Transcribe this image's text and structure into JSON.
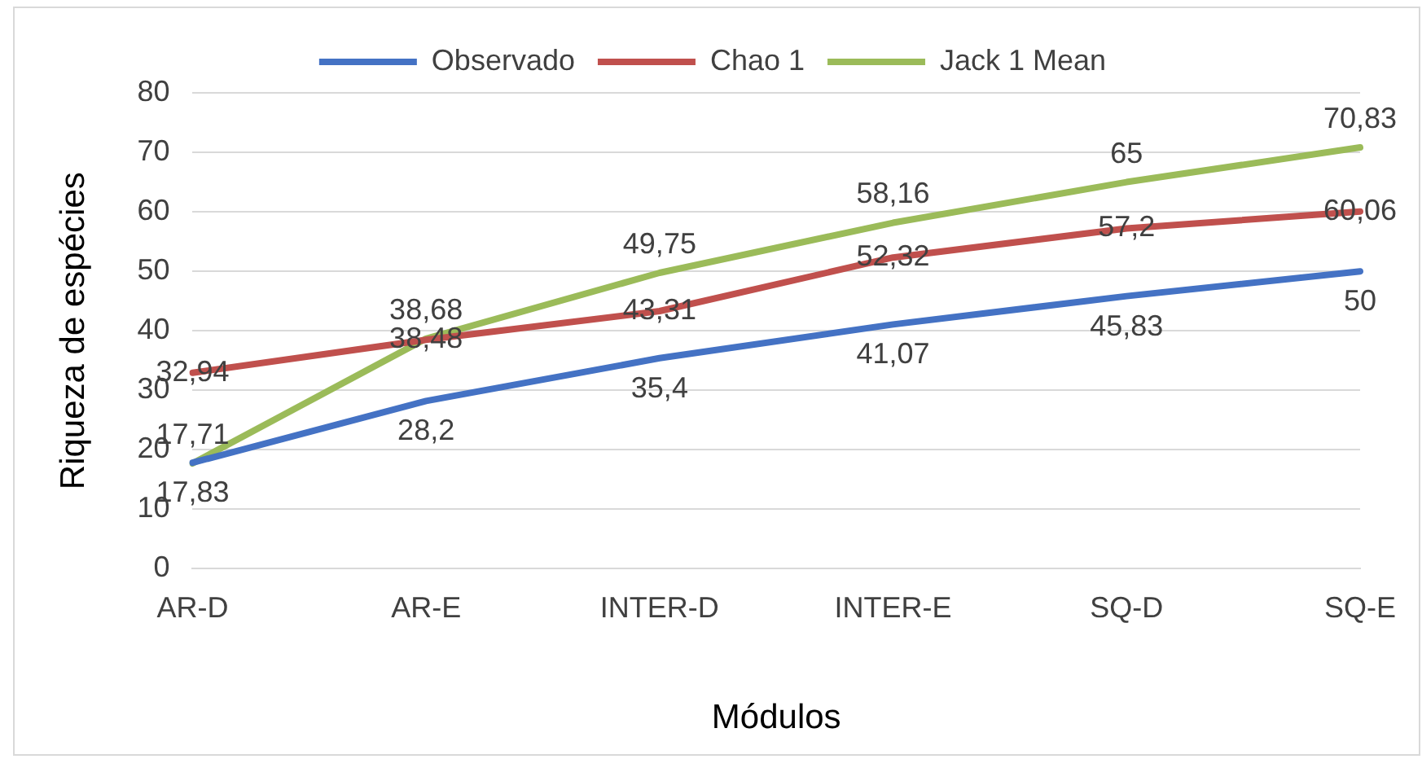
{
  "chart_data": {
    "type": "line",
    "xlabel": "Módulos",
    "ylabel": "Riqueza de espécies",
    "categories": [
      "AR-D",
      "AR-E",
      "INTER-D",
      "INTER-E",
      "SQ-D",
      "SQ-E"
    ],
    "series": [
      {
        "name": "Observado",
        "color": "#4472c4",
        "values": [
          17.83,
          28.2,
          35.4,
          41.07,
          45.83,
          50
        ],
        "value_labels": [
          "17,83",
          "28,2",
          "35,4",
          "41,07",
          "45,83",
          "50"
        ]
      },
      {
        "name": "Chao 1",
        "color": "#c0504d",
        "values": [
          32.94,
          38.48,
          43.31,
          52.32,
          57.2,
          60.06
        ],
        "value_labels": [
          "32,94",
          "38,48",
          "43,31",
          "52,32",
          "57,2",
          "60,06"
        ]
      },
      {
        "name": "Jack 1 Mean",
        "color": "#9bbb59",
        "values": [
          17.71,
          38.68,
          49.75,
          58.16,
          65,
          70.83
        ],
        "value_labels": [
          "17,71",
          "38,68",
          "49,75",
          "58,16",
          "65",
          "70,83"
        ]
      }
    ],
    "ylim": [
      0,
      80
    ],
    "yticks": [
      0,
      10,
      20,
      30,
      40,
      50,
      60,
      70,
      80
    ],
    "grid": "y",
    "legend": "top",
    "marker": "none",
    "line_style": "solid"
  }
}
